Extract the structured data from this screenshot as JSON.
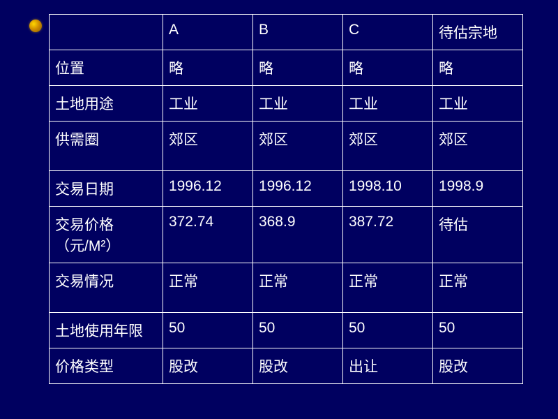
{
  "table": {
    "columns": [
      "",
      "A",
      "B",
      "C",
      "待估宗地"
    ],
    "rows": [
      {
        "label": "位置",
        "cells": [
          "略",
          "略",
          "略",
          "略"
        ],
        "tall": false
      },
      {
        "label": "土地用途",
        "cells": [
          "工业",
          "工业",
          "工业",
          "工业"
        ],
        "tall": false
      },
      {
        "label": "供需圈",
        "cells": [
          "郊区",
          "郊区",
          "郊区",
          "郊区"
        ],
        "tall": true
      },
      {
        "label": "交易日期",
        "cells": [
          "1996.12",
          "1996.12",
          "1998.10",
          "1998.9"
        ],
        "tall": false
      },
      {
        "label": "交易价格（元/M²）",
        "cells": [
          "372.74",
          "368.9",
          "387.72",
          "待估"
        ],
        "tall": false
      },
      {
        "label": "交易情况",
        "cells": [
          "正常",
          "正常",
          "正常",
          "正常"
        ],
        "tall": true
      },
      {
        "label": "土地使用年限",
        "cells": [
          "50",
          "50",
          "50",
          "50"
        ],
        "tall": false
      },
      {
        "label": "价格类型",
        "cells": [
          "股改",
          "股改",
          "出让",
          "股改"
        ],
        "tall": false
      }
    ],
    "colors": {
      "background": "#000060",
      "border": "#ffffff",
      "text": "#ffffff"
    },
    "font_size": 21
  }
}
